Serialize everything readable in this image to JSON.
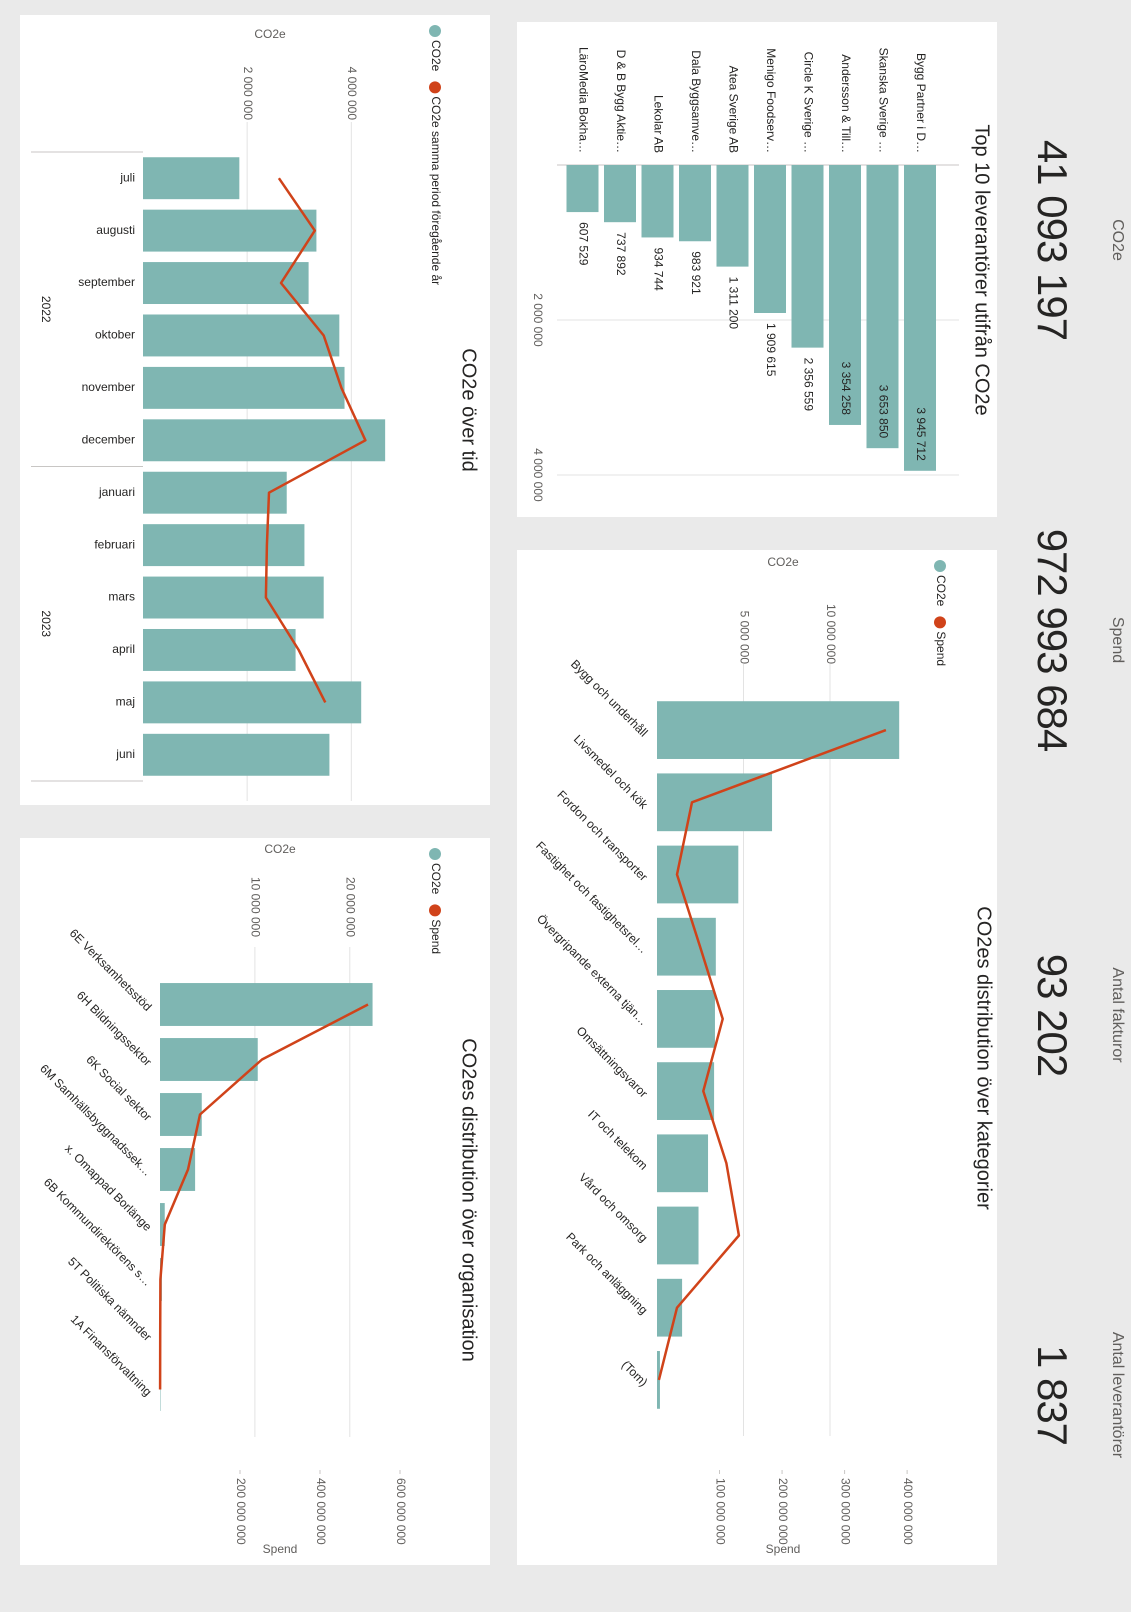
{
  "kpis": [
    {
      "label": "CO2e",
      "value": "41 093 197"
    },
    {
      "label": "Spend",
      "value": "972 993 684"
    },
    {
      "label": "Antal fakturor",
      "value": "93 202"
    },
    {
      "label": "Antal leverantörer",
      "value": "1 837"
    }
  ],
  "chart_data": [
    {
      "type": "hbar",
      "title": "Top 10 leverantörer utifrån CO2e",
      "categories": [
        "Bygg Partner i D…",
        "Skanska Sverige …",
        "Andersson & Till…",
        "Circle K Sverige …",
        "Menigo Foodserv…",
        "Atea Sverige AB",
        "Dala Byggsamve…",
        "Lekolar AB",
        "D & B Bygg Aktie…",
        "LäroMedia Bokha…"
      ],
      "values": [
        3945712,
        3653850,
        3354258,
        2356559,
        1909615,
        1311200,
        983921,
        934744,
        737892,
        607529
      ],
      "value_labels": [
        "3 945 712",
        "3 653 850",
        "3 354 258",
        "2 356 559",
        "1 909 615",
        "1 311 200",
        "983 921",
        "934 744",
        "737 892",
        "607 529"
      ],
      "color": "#7fb6b2",
      "xlim": [
        0,
        4400000
      ],
      "xticks": [
        {
          "value": 2000000,
          "label": "2 000 000"
        },
        {
          "value": 4000000,
          "label": "4 000 000"
        }
      ],
      "grid": true
    },
    {
      "type": "combo",
      "title": "CO2es distribution över kategorier",
      "categories": [
        "Bygg och underhåll",
        "Livsmedel och kök",
        "Fordon och transporter",
        "Fastighet och fastighetsrel…",
        "Övergripande externa tjän…",
        "Omsättningsvaror",
        "IT och telekom",
        "Vård och omsorg",
        "Park och anläggning",
        "(Tom)"
      ],
      "series": [
        {
          "name": "CO2e",
          "kind": "bar",
          "color": "#7fb6b2",
          "values": [
            14000000,
            6650000,
            4700000,
            3400000,
            3350000,
            3300000,
            2950000,
            2400000,
            1450000,
            170000
          ]
        },
        {
          "name": "Spend",
          "kind": "line",
          "color": "#d0431a",
          "axis": "y2",
          "values": [
            366000000,
            56000000,
            32000000,
            69000000,
            105000000,
            74000000,
            111000000,
            131000000,
            32000000,
            3000000
          ]
        }
      ],
      "ylabel": "CO2e",
      "y2label": "Spend",
      "ylim": [
        0,
        15000000
      ],
      "yticks": [
        {
          "value": 5000000,
          "label": "5 000 000"
        },
        {
          "value": 10000000,
          "label": "10 000 000"
        }
      ],
      "y2lim": [
        0,
        415000000
      ],
      "y2ticks": [
        {
          "value": 100000000,
          "label": "100 000 000"
        },
        {
          "value": 200000000,
          "label": "200 000 000"
        },
        {
          "value": 300000000,
          "label": "300 000 000"
        },
        {
          "value": 400000000,
          "label": "400 000 000"
        }
      ],
      "grid": true,
      "legend": "top-left"
    },
    {
      "type": "combo",
      "title": "CO2e över tid",
      "groups": [
        {
          "label": "2022",
          "categories": [
            "juli",
            "augusti",
            "september",
            "oktober",
            "november",
            "december"
          ]
        },
        {
          "label": "2023",
          "categories": [
            "januari",
            "februari",
            "mars",
            "april",
            "maj",
            "juni"
          ]
        }
      ],
      "series": [
        {
          "name": "CO2e",
          "kind": "bar",
          "color": "#7fb6b2",
          "values": [
            1850000,
            3330000,
            3180000,
            3770000,
            3870000,
            4650000,
            2760000,
            3100000,
            3470000,
            2930000,
            4190000,
            3580000
          ]
        },
        {
          "name": "CO2e samma period föregående år",
          "kind": "line",
          "color": "#d0431a",
          "values": [
            2610000,
            3300000,
            2650000,
            3470000,
            3810000,
            4270000,
            2420000,
            2380000,
            2360000,
            2990000,
            3500000,
            null
          ]
        }
      ],
      "ylabel": "CO2e",
      "ylim": [
        0,
        5300000
      ],
      "yticks": [
        {
          "value": 2000000,
          "label": "2 000 000"
        },
        {
          "value": 4000000,
          "label": "4 000 000"
        }
      ],
      "grid": true,
      "legend": "top-left"
    },
    {
      "type": "combo",
      "title": "CO2es distribution över organisation",
      "categories": [
        "6E Verksamhetsstöd",
        "6H Bildningssektor",
        "6K Social sektor",
        "6M Samhällsbyggnadssek…",
        "x. Omappad Borlänge",
        "6B Kommundirektörens s…",
        "5T Politiska nämnder",
        "1A Finansförvaltning"
      ],
      "series": [
        {
          "name": "CO2e",
          "kind": "bar",
          "color": "#7fb6b2",
          "values": [
            22400000,
            10300000,
            4400000,
            3700000,
            500000,
            200000,
            100000,
            50000
          ]
        },
        {
          "name": "Spend",
          "kind": "line",
          "color": "#d0431a",
          "axis": "y2",
          "values": [
            520000000,
            255000000,
            100000000,
            70000000,
            12000000,
            1000000,
            500000,
            300000
          ]
        }
      ],
      "ylabel": "CO2e",
      "y2label": "Spend",
      "ylim": [
        0,
        27400000
      ],
      "yticks": [
        {
          "value": 10000000,
          "label": "10 000 000"
        },
        {
          "value": 20000000,
          "label": "20 000 000"
        }
      ],
      "y2lim": [
        0,
        650000000
      ],
      "y2ticks": [
        {
          "value": 200000000,
          "label": "200 000 000"
        },
        {
          "value": 400000000,
          "label": "400 000 000"
        },
        {
          "value": 600000000,
          "label": "600 000 000"
        }
      ],
      "grid": true,
      "legend": "top-left"
    }
  ]
}
